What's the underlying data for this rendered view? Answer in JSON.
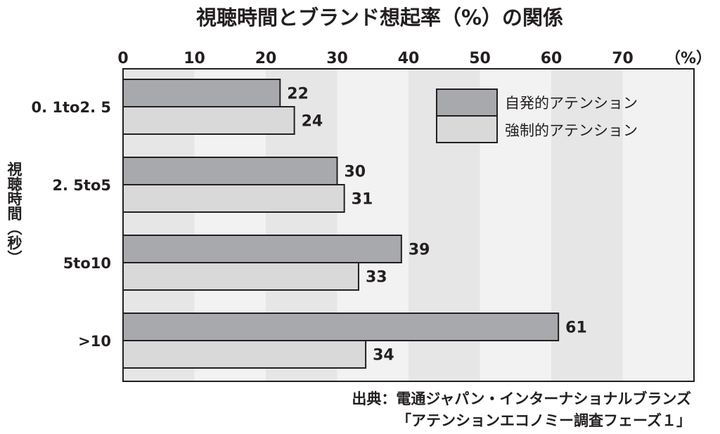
{
  "chart_data": {
    "type": "bar",
    "orientation": "horizontal",
    "title": "視聴時間とブランド想起率（%）の関係",
    "x_unit": "（%）",
    "ylabel": "視聴時間（秒）",
    "xlim": [
      0,
      80
    ],
    "xticks": [
      "0",
      "10",
      "20",
      "30",
      "40",
      "50",
      "60",
      "70"
    ],
    "categories": [
      "0. 1to2. 5",
      "2. 5to5",
      "5to10",
      ">10"
    ],
    "series": [
      {
        "name": "自発的アテンション",
        "values": [
          22,
          30,
          39,
          61
        ],
        "value_labels": [
          "22",
          "30",
          "39",
          "61"
        ],
        "color": "#a7a9ac"
      },
      {
        "name": "強制的アテンション",
        "values": [
          24,
          31,
          33,
          34
        ],
        "value_labels": [
          "24",
          "31",
          "33",
          "34"
        ],
        "color": "#d9d9da"
      }
    ],
    "legend_position": "top-right",
    "grid": "alternating vertical bands",
    "band_colors": [
      "#e6e6e7",
      "#f2f2f2"
    ],
    "source_line1": "出典：電通ジャパン・インターナショナルブランズ",
    "source_line2": "「アテンションエコノミー調査フェーズ１」"
  }
}
